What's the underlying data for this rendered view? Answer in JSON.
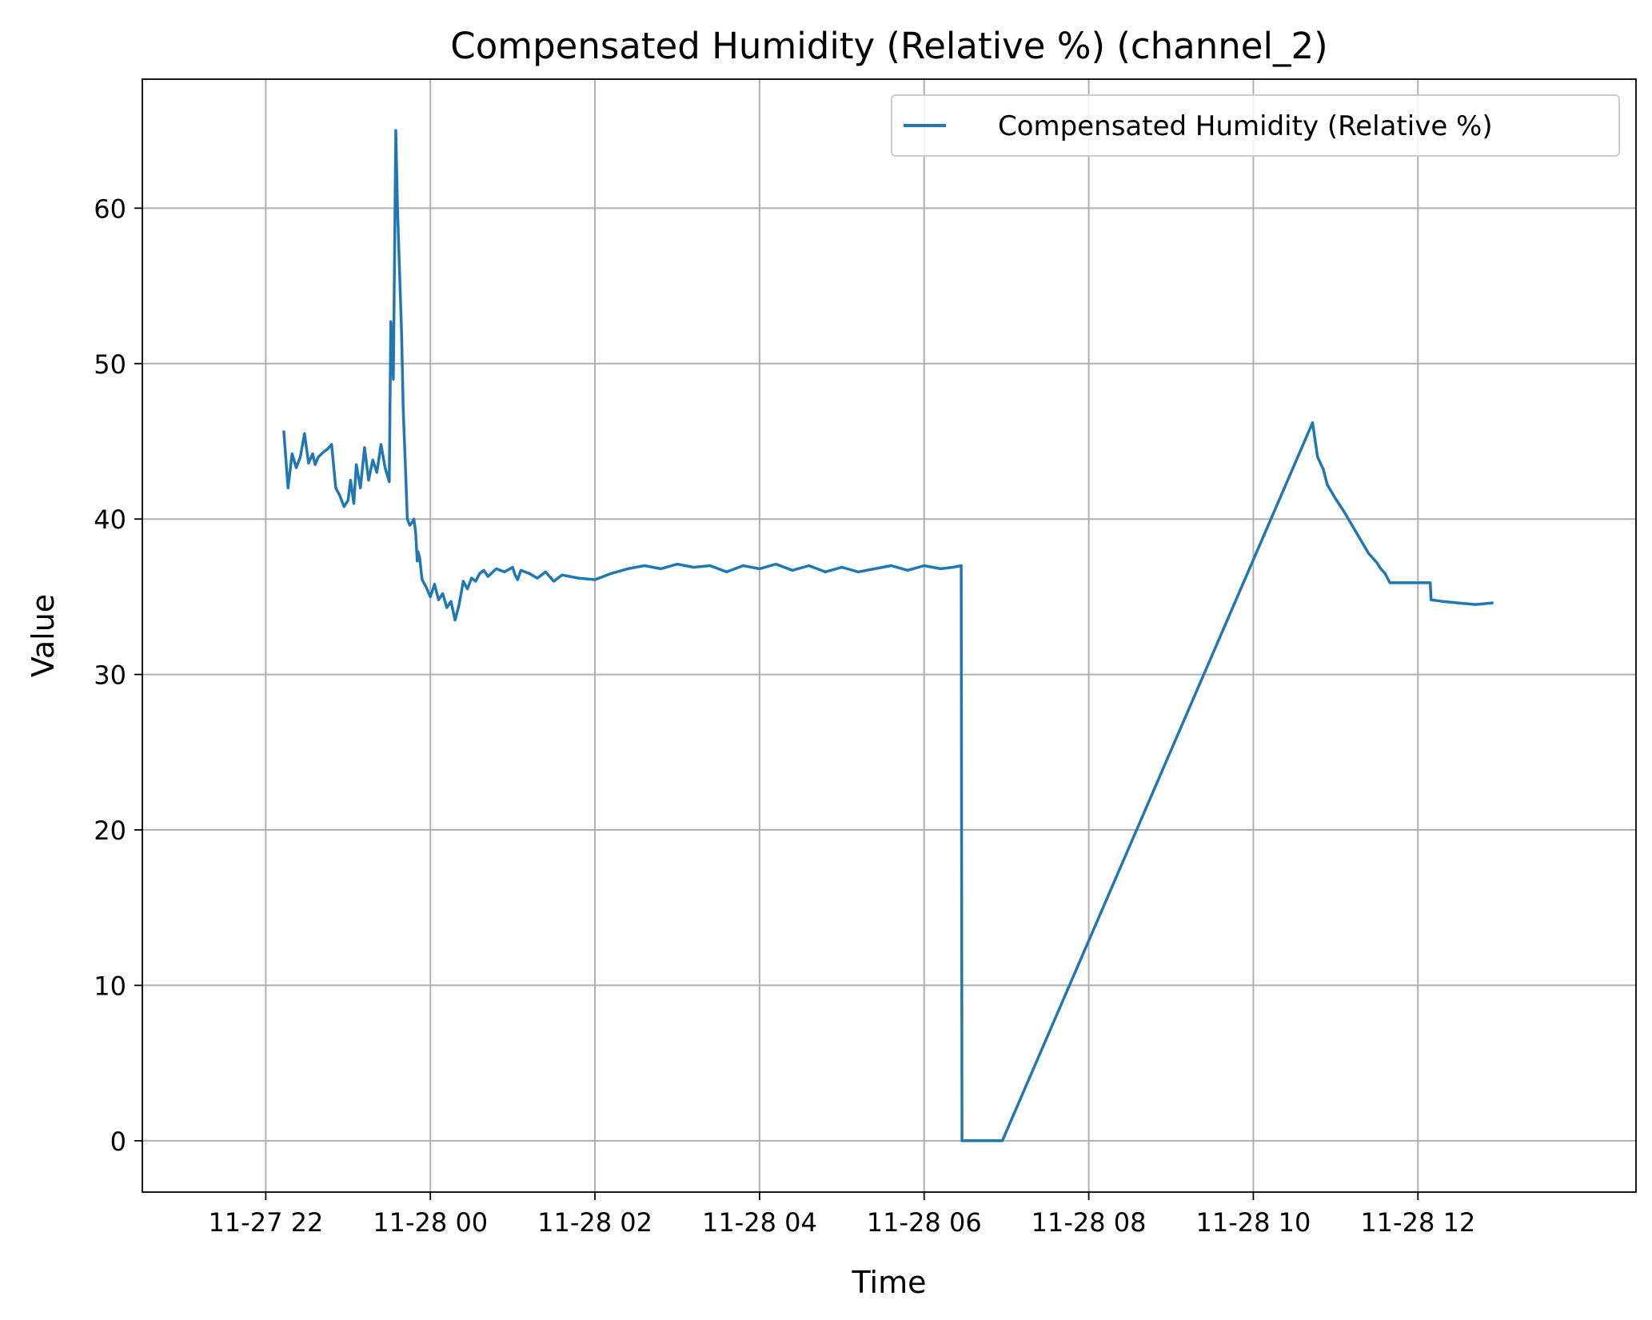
{
  "chart_data": {
    "type": "line",
    "title": "Compensated Humidity (Relative %) (channel_2)",
    "xlabel": "Time",
    "ylabel": "Value",
    "x_tick_labels": [
      "11-27 22",
      "11-28 00",
      "11-28 02",
      "11-28 04",
      "11-28 06",
      "11-28 08",
      "11-28 10",
      "11-28 12"
    ],
    "x_tick_hours": [
      22,
      24,
      26,
      28,
      30,
      32,
      34,
      36
    ],
    "y_ticks": [
      0,
      10,
      20,
      30,
      40,
      50,
      60
    ],
    "xlim_hours": [
      20.5,
      38.65
    ],
    "ylim": [
      -3.3,
      68.3
    ],
    "grid": true,
    "legend_position": "upper right",
    "colors": {
      "series": "#1f77b4",
      "grid": "#b0b0b0"
    },
    "series": [
      {
        "name": "Compensated Humidity (Relative %)",
        "x_hours": [
          22.22,
          22.27,
          22.32,
          22.37,
          22.42,
          22.47,
          22.52,
          22.57,
          22.6,
          22.64,
          22.7,
          22.75,
          22.8,
          22.85,
          22.9,
          22.95,
          23.0,
          23.03,
          23.07,
          23.1,
          23.15,
          23.2,
          23.25,
          23.3,
          23.35,
          23.4,
          23.45,
          23.5,
          23.52,
          23.55,
          23.58,
          23.6,
          23.65,
          23.67,
          23.7,
          23.72,
          23.75,
          23.78,
          23.8,
          23.82,
          23.83,
          23.84,
          23.85,
          23.87,
          23.9,
          23.95,
          24.0,
          24.05,
          24.1,
          24.15,
          24.2,
          24.25,
          24.3,
          24.35,
          24.4,
          24.45,
          24.5,
          24.55,
          24.6,
          24.65,
          24.7,
          24.8,
          24.9,
          25.0,
          25.03,
          25.06,
          25.1,
          25.2,
          25.3,
          25.4,
          25.5,
          25.6,
          25.8,
          26.0,
          26.2,
          26.4,
          26.6,
          26.8,
          27.0,
          27.2,
          27.4,
          27.6,
          27.8,
          28.0,
          28.2,
          28.4,
          28.6,
          28.8,
          29.0,
          29.2,
          29.4,
          29.6,
          29.8,
          30.0,
          30.2,
          30.35,
          30.45,
          30.46,
          30.95,
          34.72,
          34.78,
          34.85,
          34.9,
          35.0,
          35.1,
          35.2,
          35.3,
          35.4,
          35.5,
          35.55,
          35.6,
          35.65,
          35.66,
          35.8,
          36.0,
          36.1,
          36.15,
          36.16,
          36.3,
          36.5,
          36.7,
          36.9
        ],
        "values": [
          45.6,
          42.0,
          44.2,
          43.3,
          44.0,
          45.5,
          43.6,
          44.2,
          43.5,
          44.0,
          44.3,
          44.5,
          44.8,
          42.0,
          41.5,
          40.8,
          41.2,
          42.5,
          41.0,
          43.5,
          42.0,
          44.6,
          42.5,
          43.8,
          43.0,
          44.8,
          43.3,
          42.4,
          52.7,
          49.0,
          65.0,
          60.0,
          52.0,
          47.0,
          43.0,
          40.0,
          39.6,
          39.8,
          40.0,
          39.2,
          38.3,
          37.3,
          37.9,
          37.5,
          36.1,
          35.6,
          35.0,
          35.8,
          34.8,
          35.2,
          34.3,
          34.7,
          33.5,
          34.5,
          36.0,
          35.5,
          36.2,
          36.0,
          36.5,
          36.7,
          36.3,
          36.8,
          36.6,
          36.9,
          36.4,
          36.1,
          36.7,
          36.5,
          36.2,
          36.6,
          36.0,
          36.4,
          36.2,
          36.1,
          36.5,
          36.8,
          37.0,
          36.8,
          37.1,
          36.9,
          37.0,
          36.6,
          37.0,
          36.8,
          37.1,
          36.7,
          37.0,
          36.6,
          36.9,
          36.6,
          36.8,
          37.0,
          36.7,
          37.0,
          36.8,
          36.9,
          37.0,
          0.0,
          0.0,
          46.2,
          44.0,
          43.2,
          42.2,
          41.3,
          40.5,
          39.6,
          38.7,
          37.8,
          37.2,
          36.8,
          36.5,
          36.0,
          35.9,
          35.9,
          35.9,
          35.9,
          35.9,
          34.8,
          34.7,
          34.6,
          34.5,
          34.6
        ]
      }
    ]
  }
}
